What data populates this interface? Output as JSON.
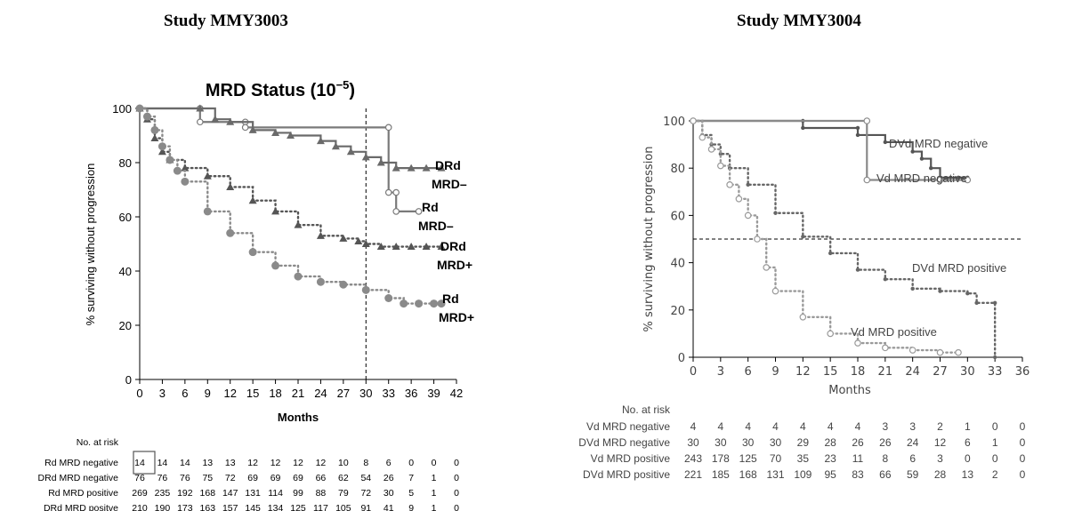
{
  "headings": {
    "left": "Study MMY3003",
    "right": "Study MMY3004"
  },
  "chart_data": [
    {
      "type": "line",
      "subtype": "kaplan-meier",
      "title": "MRD Status (10",
      "title_superscript": "−5",
      "title_close": ")",
      "xlabel": "Months",
      "ylabel": "% surviving without progression",
      "xlim": [
        0,
        42
      ],
      "ylim": [
        0,
        100
      ],
      "x_ticks": [
        0,
        3,
        6,
        9,
        12,
        15,
        18,
        21,
        24,
        27,
        30,
        33,
        36,
        39,
        42
      ],
      "y_ticks": [
        0,
        20,
        40,
        60,
        80,
        100
      ],
      "reference_line_x": 30,
      "series": [
        {
          "name": "Rd MRD–",
          "label_lines": [
            "Rd",
            "MRD–"
          ],
          "color": "#7a7a7a",
          "style": "solid",
          "x": [
            0,
            8,
            8,
            14,
            14,
            33,
            33,
            34,
            34,
            37
          ],
          "y": [
            100,
            100,
            95,
            95,
            93,
            93,
            69,
            69,
            62,
            62
          ]
        },
        {
          "name": "DRd MRD–",
          "label_lines": [
            "DRd",
            "MRD–"
          ],
          "color": "#6a6a6a",
          "style": "solid",
          "x": [
            0,
            8,
            10,
            12,
            15,
            18,
            20,
            24,
            26,
            28,
            30,
            32,
            34,
            36,
            38,
            40
          ],
          "y": [
            100,
            100,
            96,
            95,
            92,
            91,
            90,
            88,
            86,
            84,
            82,
            80,
            78,
            78,
            78,
            78
          ]
        },
        {
          "name": "DRd MRD+",
          "label_lines": [
            "DRd",
            "MRD+"
          ],
          "color": "#555555",
          "style": "dotted",
          "x": [
            0,
            1,
            2,
            3,
            4,
            6,
            9,
            12,
            15,
            18,
            21,
            24,
            27,
            29,
            30,
            32,
            34,
            36,
            38,
            40
          ],
          "y": [
            100,
            96,
            89,
            84,
            81,
            78,
            75,
            71,
            66,
            62,
            57,
            53,
            52,
            51,
            50,
            49,
            49,
            49,
            49,
            49
          ]
        },
        {
          "name": "Rd MRD+",
          "label_lines": [
            "Rd",
            "MRD+"
          ],
          "color": "#8a8a8a",
          "style": "dotted",
          "x": [
            0,
            1,
            2,
            3,
            4,
            5,
            6,
            9,
            12,
            15,
            18,
            21,
            24,
            27,
            30,
            33,
            35,
            37,
            39,
            40
          ],
          "y": [
            100,
            97,
            92,
            86,
            81,
            77,
            73,
            62,
            54,
            47,
            42,
            38,
            36,
            35,
            33,
            30,
            28,
            28,
            28,
            28
          ]
        }
      ],
      "risk_table": {
        "header": "No. at risk",
        "rows": [
          {
            "label": "Rd MRD negative",
            "values": [
              "14",
              "14",
              "14",
              "13",
              "13",
              "12",
              "12",
              "12",
              "12",
              "10",
              "8",
              "6",
              "0",
              "0",
              "0"
            ]
          },
          {
            "label": "DRd MRD negative",
            "values": [
              "76",
              "76",
              "76",
              "75",
              "72",
              "69",
              "69",
              "69",
              "66",
              "62",
              "54",
              "26",
              "7",
              "1",
              "0"
            ]
          },
          {
            "label": "Rd MRD positive",
            "values": [
              "269",
              "235",
              "192",
              "168",
              "147",
              "131",
              "114",
              "99",
              "88",
              "79",
              "72",
              "30",
              "5",
              "1",
              "0"
            ]
          },
          {
            "label": "DRd MRD positve",
            "values": [
              "210",
              "190",
              "173",
              "163",
              "157",
              "145",
              "134",
              "125",
              "117",
              "105",
              "91",
              "41",
              "9",
              "1",
              "0"
            ]
          }
        ]
      }
    },
    {
      "type": "line",
      "subtype": "kaplan-meier",
      "title": "",
      "xlabel": "Months",
      "ylabel": "% surviving without progression",
      "xlim": [
        0,
        36
      ],
      "ylim": [
        0,
        100
      ],
      "x_ticks": [
        0,
        3,
        6,
        9,
        12,
        15,
        18,
        21,
        24,
        27,
        30,
        33,
        36
      ],
      "y_ticks": [
        0,
        20,
        40,
        60,
        80,
        100
      ],
      "reference_line_y": 50,
      "series": [
        {
          "name": "DVd MRD negative",
          "color": "#555555",
          "style": "solid",
          "x": [
            0,
            12,
            12,
            18,
            18,
            21,
            24,
            25,
            26,
            27,
            29,
            30
          ],
          "y": [
            100,
            100,
            97,
            97,
            94,
            91,
            87,
            84,
            80,
            76,
            76,
            76
          ]
        },
        {
          "name": "Vd MRD negative",
          "color": "#8a8a8a",
          "style": "solid",
          "x": [
            0,
            19,
            19,
            27,
            30
          ],
          "y": [
            100,
            100,
            75,
            75,
            75
          ]
        },
        {
          "name": "DVd MRD positive",
          "color": "#666666",
          "style": "dotted",
          "x": [
            0,
            1,
            2,
            3,
            4,
            6,
            9,
            12,
            15,
            18,
            21,
            24,
            27,
            30,
            31,
            33,
            33
          ],
          "y": [
            100,
            94,
            90,
            86,
            80,
            73,
            61,
            51,
            44,
            37,
            33,
            29,
            28,
            27,
            23,
            23,
            0
          ]
        },
        {
          "name": "Vd MRD positive",
          "color": "#9a9a9a",
          "style": "dotted",
          "x": [
            0,
            1,
            2,
            3,
            4,
            5,
            6,
            7,
            8,
            9,
            12,
            15,
            18,
            21,
            24,
            27,
            29
          ],
          "y": [
            100,
            93,
            88,
            81,
            73,
            67,
            60,
            50,
            38,
            28,
            17,
            10,
            6,
            4,
            3,
            2,
            2
          ]
        }
      ],
      "risk_table": {
        "header": "No. at risk",
        "rows": [
          {
            "label": "Vd MRD negative",
            "values": [
              "4",
              "4",
              "4",
              "4",
              "4",
              "4",
              "4",
              "3",
              "3",
              "2",
              "1",
              "0",
              "0"
            ]
          },
          {
            "label": "DVd MRD negative",
            "values": [
              "30",
              "30",
              "30",
              "30",
              "29",
              "28",
              "26",
              "26",
              "24",
              "12",
              "6",
              "1",
              "0"
            ]
          },
          {
            "label": "Vd MRD positive",
            "values": [
              "243",
              "178",
              "125",
              "70",
              "35",
              "23",
              "11",
              "8",
              "6",
              "3",
              "0",
              "0",
              "0"
            ]
          },
          {
            "label": "DVd MRD positive",
            "values": [
              "221",
              "185",
              "168",
              "131",
              "109",
              "95",
              "83",
              "66",
              "59",
              "28",
              "13",
              "2",
              "0"
            ]
          }
        ]
      }
    }
  ]
}
